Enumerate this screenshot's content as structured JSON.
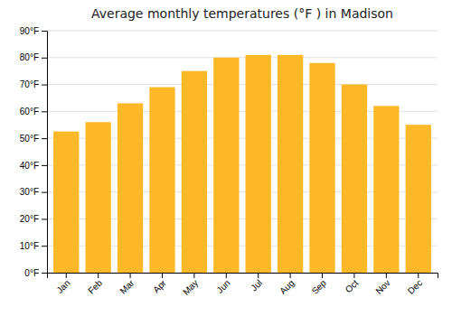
{
  "chart_data": {
    "type": "bar",
    "title": "Average monthly temperatures (°F ) in Madison",
    "categories": [
      "Jan",
      "Feb",
      "Mar",
      "Apr",
      "May",
      "Jun",
      "Jul",
      "Aug",
      "Sep",
      "Oct",
      "Nov",
      "Dec"
    ],
    "values": [
      52.5,
      56,
      63,
      69,
      75,
      80,
      81,
      81,
      78,
      70,
      62,
      55
    ],
    "color": "#FDB827",
    "ylim": [
      0,
      90
    ],
    "yticks": [
      {
        "value": 0,
        "label": "0°F"
      },
      {
        "value": 10,
        "label": "10°F"
      },
      {
        "value": 20,
        "label": "20°F"
      },
      {
        "value": 30,
        "label": "30°F"
      },
      {
        "value": 40,
        "label": "40°F"
      },
      {
        "value": 50,
        "label": "50°F"
      },
      {
        "value": 60,
        "label": "60°F"
      },
      {
        "value": 70,
        "label": "70°F"
      },
      {
        "value": 80,
        "label": "80°F"
      },
      {
        "value": 90,
        "label": "90°F"
      }
    ],
    "grid": true
  }
}
